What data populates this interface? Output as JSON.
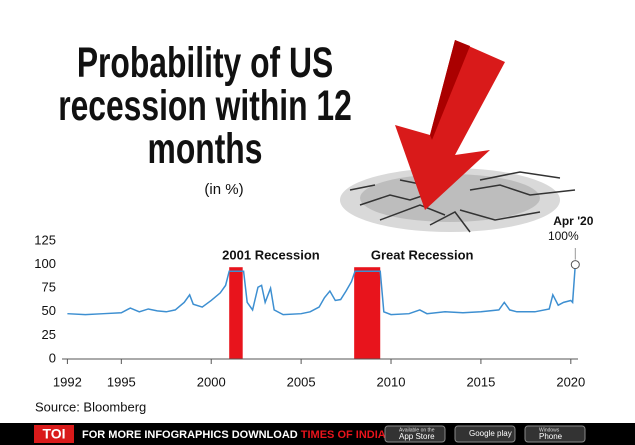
{
  "chart_data": {
    "type": "line",
    "title": "Probability of US recession within 12 months",
    "subtitle": "(in %)",
    "x": [
      1992,
      1993,
      1994,
      1995,
      1995.5,
      1996,
      1996.5,
      1997,
      1997.5,
      1998,
      1998.5,
      1998.8,
      1999,
      1999.5,
      2000,
      2000.5,
      2000.8,
      2001,
      2001.5,
      2001.8,
      2002,
      2002.3,
      2002.6,
      2002.8,
      2003,
      2003.3,
      2003.5,
      2004,
      2005,
      2005.5,
      2006,
      2006.3,
      2006.6,
      2006.9,
      2007.2,
      2007.5,
      2007.8,
      2008,
      2008.5,
      2009,
      2009.4,
      2009.6,
      2010,
      2011,
      2011.6,
      2012,
      2013,
      2014,
      2015,
      2016,
      2016.3,
      2016.6,
      2017,
      2018,
      2018.8,
      2019,
      2019.3,
      2019.6,
      2020,
      2020.1,
      2020.25
    ],
    "values": [
      48,
      47,
      48,
      49,
      54,
      50,
      53,
      51,
      50,
      52,
      60,
      68,
      58,
      55,
      62,
      70,
      78,
      93,
      93,
      93,
      60,
      52,
      76,
      78,
      60,
      75,
      52,
      47,
      48,
      50,
      55,
      65,
      72,
      62,
      63,
      72,
      82,
      93,
      93,
      93,
      93,
      50,
      47,
      48,
      52,
      48,
      50,
      49,
      50,
      52,
      60,
      52,
      50,
      50,
      53,
      68,
      57,
      60,
      62,
      60,
      100
    ],
    "color": "#3d8fd1",
    "xlim": [
      1991.7,
      2020.4
    ],
    "xticks": [
      1992,
      1995,
      2000,
      2005,
      2010,
      2015,
      2020
    ],
    "ylim": [
      0,
      125
    ],
    "yticks": [
      0,
      25,
      50,
      75,
      100,
      125
    ],
    "grid": false,
    "recessions": [
      {
        "label": "2001 Recession",
        "start": 2001.0,
        "end": 2001.75,
        "color": "#e8141c"
      },
      {
        "label": "Great Recession",
        "start": 2007.95,
        "end": 2009.4,
        "color": "#e8141c"
      }
    ],
    "highlight": {
      "label": "Apr '20",
      "value_label": "100%"
    },
    "source": "Source: Bloomberg"
  },
  "footer": {
    "brand": "TOI",
    "text": "FOR MORE INFOGRAPHICS DOWNLOAD",
    "app": "TIMES OF INDIA APP",
    "badges": [
      {
        "small": "Available on the",
        "big": "App Store"
      },
      {
        "small": "",
        "big": "Google play"
      },
      {
        "small": "Windows",
        "big": "Phone"
      }
    ]
  }
}
